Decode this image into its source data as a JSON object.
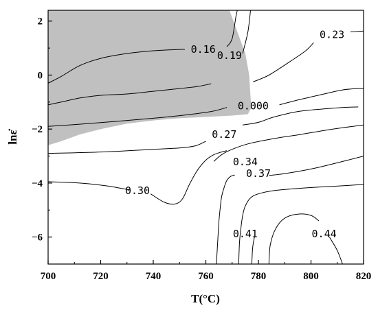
{
  "chart_data": {
    "type": "contour",
    "title": "",
    "xlabel": "T(°C)",
    "ylabel": "lnε̇",
    "xlim": [
      700,
      820
    ],
    "ylim": [
      -7,
      2.4
    ],
    "x_ticks": [
      700,
      720,
      740,
      760,
      780,
      800,
      820
    ],
    "y_ticks": [
      -6,
      -4,
      -2,
      0,
      2
    ],
    "x_tick_labels": [
      "700",
      "720",
      "740",
      "760",
      "780",
      "800",
      "820"
    ],
    "y_tick_labels": [
      "−6",
      "−4",
      "−2",
      "0",
      "2"
    ],
    "grid": false,
    "instability_region": {
      "fill": "#c0c0c0",
      "boundary": [
        [
          700,
          2.4
        ],
        [
          769,
          2.4
        ],
        [
          772,
          1.6
        ],
        [
          775,
          0.8
        ],
        [
          776.5,
          0
        ],
        [
          777,
          -0.8
        ],
        [
          777.3,
          -1.2
        ],
        [
          776,
          -1.45
        ],
        [
          770,
          -1.5
        ],
        [
          760,
          -1.55
        ],
        [
          750,
          -1.6
        ],
        [
          740,
          -1.68
        ],
        [
          730,
          -1.8
        ],
        [
          720,
          -2.0
        ],
        [
          712,
          -2.2
        ],
        [
          705,
          -2.45
        ],
        [
          700,
          -2.6
        ]
      ]
    },
    "contours": [
      {
        "level_label": "0.16",
        "points": [
          [
            700,
            -0.3
          ],
          [
            705,
            -0.05
          ],
          [
            712,
            0.35
          ],
          [
            720,
            0.62
          ],
          [
            730,
            0.8
          ],
          [
            740,
            0.9
          ],
          [
            750,
            0.95
          ],
          [
            752,
            0.95
          ]
        ],
        "points_b": [
          [
            768,
            1.05
          ],
          [
            770,
            1.35
          ],
          [
            771.5,
            2.2
          ],
          [
            772,
            2.4
          ]
        ],
        "label_at": [
          759,
          0.95
        ]
      },
      {
        "level_label": "0.19",
        "points": [
          [
            700,
            -1.1
          ],
          [
            705,
            -1.0
          ],
          [
            712,
            -0.85
          ],
          [
            720,
            -0.75
          ],
          [
            730,
            -0.7
          ],
          [
            740,
            -0.6
          ],
          [
            750,
            -0.5
          ],
          [
            757,
            -0.42
          ],
          [
            762,
            -0.32
          ]
        ],
        "points_b": [
          [
            774,
            0.8
          ],
          [
            776,
            1.6
          ],
          [
            777,
            2.4
          ]
        ],
        "label_at": [
          769,
          0.72
        ]
      },
      {
        "level_label": "0.23",
        "points": [
          [
            778,
            -0.25
          ],
          [
            784,
            0.0
          ],
          [
            792,
            0.5
          ],
          [
            798,
            0.9
          ],
          [
            801,
            1.2
          ]
        ],
        "points_b": [
          [
            815,
            1.6
          ],
          [
            818,
            1.62
          ],
          [
            820,
            1.63
          ]
        ],
        "label_at": [
          808,
          1.5
        ]
      },
      {
        "level_label": "0.000",
        "points": [
          [
            700,
            -1.9
          ],
          [
            712,
            -1.82
          ],
          [
            725,
            -1.72
          ],
          [
            740,
            -1.6
          ],
          [
            752,
            -1.48
          ],
          [
            762,
            -1.35
          ],
          [
            768,
            -1.2
          ]
        ],
        "points_b": [
          [
            788,
            -1.1
          ],
          [
            796,
            -0.9
          ],
          [
            805,
            -0.7
          ],
          [
            812,
            -0.55
          ],
          [
            818,
            -0.5
          ],
          [
            820,
            -0.5
          ]
        ],
        "label_at": [
          778,
          -1.15
        ]
      },
      {
        "level_label": "0.27",
        "points": [
          [
            700,
            -2.9
          ],
          [
            720,
            -2.85
          ],
          [
            740,
            -2.75
          ],
          [
            750,
            -2.7
          ],
          [
            756,
            -2.62
          ],
          [
            760,
            -2.45
          ]
        ],
        "points_b": [
          [
            774,
            -1.85
          ],
          [
            780,
            -1.75
          ],
          [
            786,
            -1.55
          ],
          [
            795,
            -1.35
          ],
          [
            805,
            -1.25
          ],
          [
            812,
            -1.2
          ],
          [
            818,
            -1.18
          ]
        ],
        "label_at": [
          767,
          -2.2
        ]
      },
      {
        "level_label": "0.34",
        "points": [
          [
            763,
            -3.2
          ],
          [
            766,
            -2.95
          ],
          [
            770,
            -2.75
          ],
          [
            776,
            -2.55
          ],
          [
            786,
            -2.35
          ],
          [
            796,
            -2.2
          ],
          [
            805,
            -2.05
          ],
          [
            812,
            -1.95
          ],
          [
            820,
            -1.85
          ]
        ],
        "points_b": [],
        "label_at": [
          775,
          -3.22
        ]
      },
      {
        "level_label": "0.37",
        "points": [
          [
            820,
            -3.0
          ],
          [
            810,
            -3.25
          ],
          [
            800,
            -3.48
          ],
          [
            790,
            -3.65
          ],
          [
            784,
            -3.72
          ]
        ],
        "points_b": [],
        "label_at": [
          780,
          -3.65
        ]
      },
      {
        "level_label": "0.30",
        "points": [
          [
            700,
            -3.95
          ],
          [
            712,
            -4.0
          ],
          [
            722,
            -4.1
          ],
          [
            728,
            -4.2
          ],
          [
            731,
            -4.25
          ]
        ],
        "points_b": [
          [
            739,
            -4.4
          ],
          [
            744,
            -4.7
          ],
          [
            748,
            -4.78
          ],
          [
            751,
            -4.6
          ],
          [
            754,
            -4.0
          ],
          [
            757,
            -3.5
          ],
          [
            760,
            -3.15
          ],
          [
            763,
            -2.95
          ],
          [
            766,
            -2.85
          ],
          [
            768,
            -2.8
          ]
        ],
        "label_at": [
          734,
          -4.28
        ]
      },
      {
        "level_label": "0.41",
        "points": [
          [
            764,
            -7.0
          ],
          [
            764.5,
            -6.2
          ],
          [
            765,
            -5.4
          ],
          [
            765.5,
            -4.9
          ],
          [
            766,
            -4.5
          ],
          [
            767,
            -4.15
          ],
          [
            768,
            -3.9
          ],
          [
            769.5,
            -3.75
          ],
          [
            771,
            -3.7
          ]
        ],
        "points_b": [
          [
            772.5,
            -7.0
          ],
          [
            772.8,
            -6.2
          ],
          [
            773.3,
            -5.7
          ],
          [
            774,
            -5.2
          ],
          [
            775,
            -4.85
          ],
          [
            777,
            -4.55
          ],
          [
            780,
            -4.4
          ],
          [
            786,
            -4.28
          ],
          [
            795,
            -4.2
          ],
          [
            803,
            -4.15
          ],
          [
            812,
            -4.1
          ],
          [
            820,
            -4.05
          ]
        ],
        "points_c": [
          [
            777.5,
            -7.0
          ],
          [
            777.8,
            -6.4
          ],
          [
            778.5,
            -6.0
          ]
        ],
        "label_at": [
          775,
          -5.88
        ]
      },
      {
        "level_label": "0.44",
        "points": [
          [
            784,
            -7.0
          ],
          [
            784.5,
            -6.3
          ],
          [
            786.5,
            -5.7
          ],
          [
            790,
            -5.3
          ],
          [
            795,
            -5.15
          ],
          [
            800,
            -5.2
          ],
          [
            803,
            -5.4
          ]
        ],
        "points_b": [
          [
            807,
            -6.0
          ],
          [
            810,
            -6.5
          ],
          [
            812,
            -7.0
          ]
        ],
        "label_at": [
          805,
          -5.88
        ]
      }
    ]
  }
}
